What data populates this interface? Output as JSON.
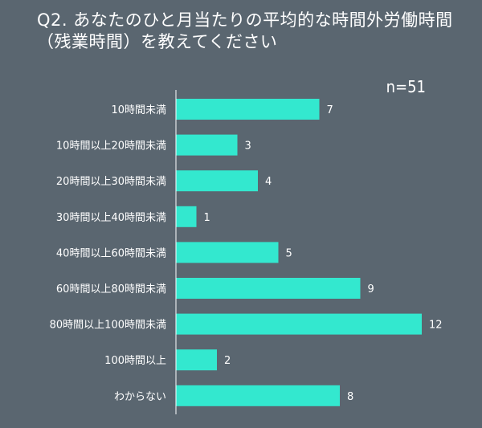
{
  "header": {
    "title": "Q2. あなたのひと月当たりの平均的な時間外労働時間（残業時間）を教えてください",
    "sample_size": "n=51"
  },
  "colors": {
    "background": "#5a6670",
    "bar": "#33e8cf",
    "text": "#ffffff",
    "axis": "#ffffff"
  },
  "chart_data": {
    "type": "bar",
    "orientation": "horizontal",
    "title": "Q2. あなたのひと月当たりの平均的な時間外労働時間（残業時間）を教えてください",
    "categories": [
      "10時間未満",
      "10時間以上20時間未満",
      "20時間以上30時間未満",
      "30時間以上40時間未満",
      "40時間以上60時間未満",
      "60時間以上80時間未満",
      "80時間以上100時間未満",
      "100時間以上",
      "わからない"
    ],
    "values": [
      7,
      3,
      4,
      1,
      5,
      9,
      12,
      2,
      8
    ],
    "xlim": [
      0,
      12
    ],
    "grid": false,
    "data_labels": true
  }
}
